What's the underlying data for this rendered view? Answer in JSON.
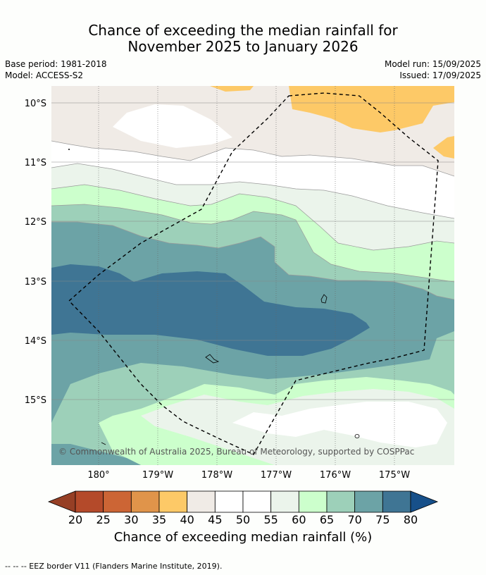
{
  "title_line1": "Chance of exceeding the median rainfall for",
  "title_line2": "November 2025 to January 2026",
  "base_period": "Base period: 1981-2018",
  "model": "Model: ACCESS-S2",
  "model_run": "Model run: 15/09/2025",
  "issued": "Issued: 17/09/2025",
  "copyright": "© Commonwealth of Australia 2025, Bureau of Meteorology, supported by COSPPac",
  "lat_labels": [
    "10°S",
    "11°S",
    "12°S",
    "13°S",
    "14°S",
    "15°S"
  ],
  "lon_labels": [
    "180°",
    "179°W",
    "178°W",
    "177°W",
    "176°W",
    "175°W"
  ],
  "colorbar": {
    "title": "Chance of exceeding median rainfall (%)",
    "ticks": [
      "20",
      "25",
      "30",
      "35",
      "40",
      "45",
      "50",
      "55",
      "60",
      "65",
      "70",
      "75",
      "80"
    ],
    "colors": [
      "#b44a2a",
      "#cc6535",
      "#e0944a",
      "#fdc967",
      "#f0ebe6",
      "#ffffff",
      "#ffffff",
      "#ebf4eb",
      "#ccffcc",
      "#9dd0b9",
      "#6ca3a6",
      "#3f7594"
    ],
    "under_color": "#963f25",
    "over_color": "#17508a"
  },
  "footnote": "--  --  -- EEZ border V11 (Flanders Marine Institute, 2019)."
}
